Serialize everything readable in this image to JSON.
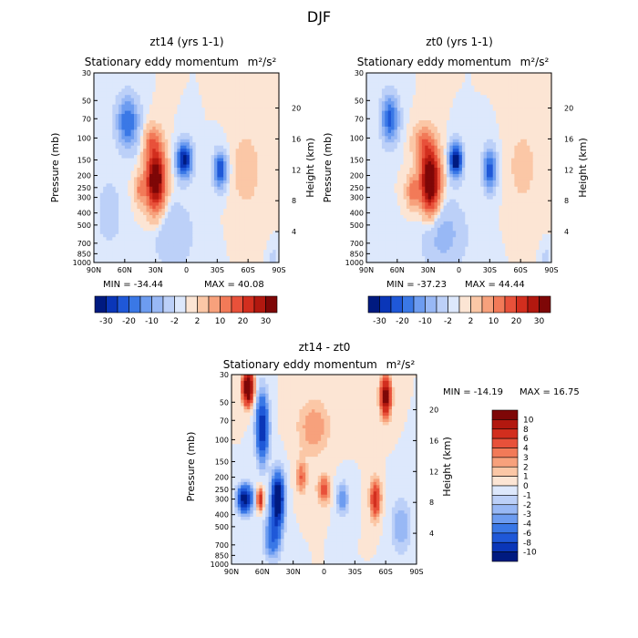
{
  "figure_title": "DJF",
  "chart_data": [
    {
      "type": "heatmap",
      "title": "zt14 (yrs 1-1)",
      "subtitle": "Stationary eddy momentum",
      "units": "m²/s²",
      "ylabel": "Pressure (mb)",
      "ylabel_right": "Height (km)",
      "x_ticks": [
        "90N",
        "60N",
        "30N",
        "0",
        "30S",
        "60S",
        "90S"
      ],
      "x_values": [
        90,
        60,
        30,
        0,
        -30,
        -60,
        -90
      ],
      "p_ticks": [
        "30",
        "50",
        "70",
        "100",
        "150",
        "200",
        "250",
        "300",
        "400",
        "500",
        "700",
        "850",
        "1000"
      ],
      "p_values": [
        30,
        50,
        70,
        100,
        150,
        200,
        250,
        300,
        400,
        500,
        700,
        850,
        1000
      ],
      "h_ticks": [
        "4",
        "8",
        "12",
        "16",
        "20"
      ],
      "ylim": [
        1000,
        30
      ],
      "min_label": "MIN = -34.44",
      "max_label": "MAX = 40.08",
      "min": -34.44,
      "max": 40.08,
      "blobs": [
        {
          "lat": 57,
          "p": 75,
          "a": -20,
          "w": 10,
          "h": 0.45
        },
        {
          "lat": 30,
          "p": 215,
          "a": 40,
          "w": 9,
          "h": 0.55
        },
        {
          "lat": 33,
          "p": 105,
          "a": 10,
          "w": 8,
          "h": 0.25
        },
        {
          "lat": 2,
          "p": 150,
          "a": -34,
          "w": 7,
          "h": 0.3
        },
        {
          "lat": -33,
          "p": 180,
          "a": -26,
          "w": 6,
          "h": 0.3
        },
        {
          "lat": 45,
          "p": 260,
          "a": 10,
          "w": 5,
          "h": 0.25
        },
        {
          "lat": 13,
          "p": 600,
          "a": -6,
          "w": 18,
          "h": 0.6
        },
        {
          "lat": -58,
          "p": 180,
          "a": 5,
          "w": 12,
          "h": 0.6
        },
        {
          "lat": 75,
          "p": 400,
          "a": -6,
          "w": 10,
          "h": 0.5
        },
        {
          "lat": -85,
          "p": 900,
          "a": -6,
          "w": 3,
          "h": 0.15
        }
      ]
    },
    {
      "type": "heatmap",
      "title": "zt0 (yrs 1-1)",
      "subtitle": "Stationary eddy momentum",
      "units": "m²/s²",
      "ylabel": "Pressure (mb)",
      "ylabel_right": "Height (km)",
      "x_ticks": [
        "90N",
        "60N",
        "30N",
        "0",
        "30S",
        "60S",
        "90S"
      ],
      "x_values": [
        90,
        60,
        30,
        0,
        -30,
        -60,
        -90
      ],
      "p_ticks": [
        "30",
        "50",
        "70",
        "100",
        "150",
        "200",
        "250",
        "300",
        "400",
        "500",
        "700",
        "850",
        "1000"
      ],
      "p_values": [
        30,
        50,
        70,
        100,
        150,
        200,
        250,
        300,
        400,
        500,
        700,
        850,
        1000
      ],
      "h_ticks": [
        "4",
        "8",
        "12",
        "16",
        "20"
      ],
      "ylim": [
        1000,
        30
      ],
      "min_label": "MIN = -37.23",
      "max_label": "MAX = 44.44",
      "min": -37.23,
      "max": 44.44,
      "blobs": [
        {
          "lat": 67,
          "p": 70,
          "a": -22,
          "w": 8,
          "h": 0.4
        },
        {
          "lat": 28,
          "p": 220,
          "a": 44,
          "w": 9,
          "h": 0.55
        },
        {
          "lat": 35,
          "p": 110,
          "a": 12,
          "w": 9,
          "h": 0.3
        },
        {
          "lat": 3,
          "p": 150,
          "a": -37,
          "w": 6,
          "h": 0.3
        },
        {
          "lat": -30,
          "p": 180,
          "a": -24,
          "w": 6,
          "h": 0.35
        },
        {
          "lat": 45,
          "p": 270,
          "a": 12,
          "w": 6,
          "h": 0.3
        },
        {
          "lat": 15,
          "p": 600,
          "a": -8,
          "w": 20,
          "h": 0.6
        },
        {
          "lat": -62,
          "p": 170,
          "a": 4,
          "w": 12,
          "h": 0.6
        },
        {
          "lat": -85,
          "p": 900,
          "a": -6,
          "w": 3,
          "h": 0.15
        }
      ]
    },
    {
      "type": "heatmap",
      "title": "zt14 - zt0",
      "subtitle": "Stationary eddy momentum",
      "units": "m²/s²",
      "ylabel": "Pressure (mb)",
      "ylabel_right": "Height (km)",
      "x_ticks": [
        "90N",
        "60N",
        "30N",
        "0",
        "30S",
        "60S",
        "90S"
      ],
      "x_values": [
        90,
        60,
        30,
        0,
        -30,
        -60,
        -90
      ],
      "p_ticks": [
        "30",
        "50",
        "70",
        "100",
        "150",
        "200",
        "250",
        "300",
        "400",
        "500",
        "700",
        "850",
        "1000"
      ],
      "p_values": [
        30,
        50,
        70,
        100,
        150,
        200,
        250,
        300,
        400,
        500,
        700,
        850,
        1000
      ],
      "h_ticks": [
        "4",
        "8",
        "12",
        "16",
        "20"
      ],
      "ylim": [
        1000,
        30
      ],
      "min_label": "MIN = -14.19",
      "max_label": "MAX =  16.75",
      "min": -14.19,
      "max": 16.75,
      "blobs": [
        {
          "lat": 74,
          "p": 38,
          "a": 16,
          "w": 5,
          "h": 0.3
        },
        {
          "lat": 60,
          "p": 80,
          "a": -10,
          "w": 6,
          "h": 0.6
        },
        {
          "lat": 77,
          "p": 300,
          "a": -12,
          "w": 7,
          "h": 0.25
        },
        {
          "lat": 62,
          "p": 300,
          "a": 8,
          "w": 3,
          "h": 0.2
        },
        {
          "lat": 45,
          "p": 300,
          "a": -14,
          "w": 6,
          "h": 0.45
        },
        {
          "lat": 22,
          "p": 200,
          "a": 4,
          "w": 5,
          "h": 0.3
        },
        {
          "lat": 0,
          "p": 250,
          "a": 5,
          "w": 6,
          "h": 0.25
        },
        {
          "lat": -18,
          "p": 300,
          "a": -4,
          "w": 6,
          "h": 0.3
        },
        {
          "lat": -50,
          "p": 300,
          "a": 7,
          "w": 5,
          "h": 0.35
        },
        {
          "lat": -60,
          "p": 45,
          "a": 12,
          "w": 5,
          "h": 0.35
        },
        {
          "lat": 10,
          "p": 80,
          "a": 3,
          "w": 15,
          "h": 0.5
        },
        {
          "lat": -75,
          "p": 500,
          "a": -3,
          "w": 10,
          "h": 0.5
        },
        {
          "lat": 50,
          "p": 600,
          "a": -6,
          "w": 8,
          "h": 0.4
        }
      ]
    }
  ],
  "colorbars": {
    "horizontal_labels": [
      "-30",
      "-20",
      "-10",
      "-2",
      "2",
      "10",
      "20",
      "30"
    ],
    "horizontal_colors": [
      "#001a80",
      "#0a36b8",
      "#1f58d8",
      "#3a78e6",
      "#6d9cf0",
      "#98b8f5",
      "#bcd0f8",
      "#dde8fc",
      "#fce5d4",
      "#fbc7a6",
      "#f7a17c",
      "#f27a58",
      "#e8513a",
      "#d22e1e",
      "#b2180f",
      "#7e0707"
    ],
    "vertical_labels": [
      "10",
      "8",
      "6",
      "4",
      "3",
      "2",
      "1",
      "0",
      "-1",
      "-2",
      "-3",
      "-4",
      "-6",
      "-8",
      "-10"
    ],
    "vertical_colors": [
      "#7e0707",
      "#b2180f",
      "#d22e1e",
      "#e8513a",
      "#f27a58",
      "#f7a17c",
      "#fbc7a6",
      "#fce5d4",
      "#dde8fc",
      "#bcd0f8",
      "#98b8f5",
      "#6d9cf0",
      "#3a78e6",
      "#1f58d8",
      "#0a36b8",
      "#001a80"
    ]
  }
}
